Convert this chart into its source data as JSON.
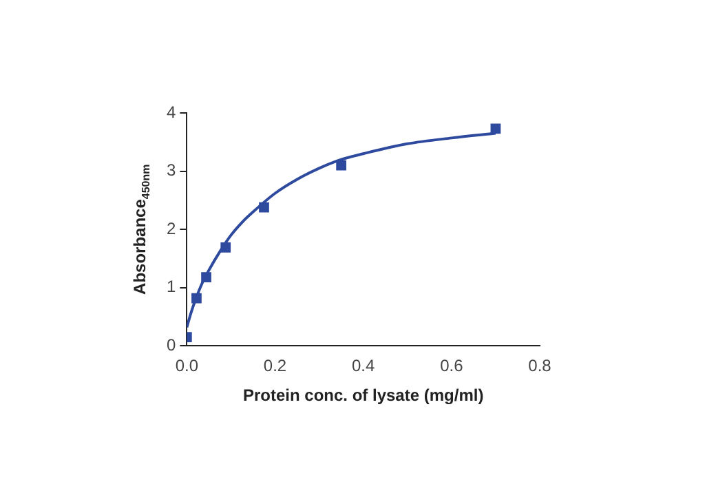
{
  "chart_data": {
    "type": "scatter",
    "xlabel": "Protein conc. of lysate (mg/ml)",
    "ylabel": "Absorbance$_{450nm}$",
    "xlim": [
      0,
      0.8
    ],
    "xticks": [
      {
        "value": 0,
        "label": "0.0"
      },
      0.2,
      0.4,
      0.6,
      0.8
    ],
    "ylim": [
      0,
      4
    ],
    "yticks": [
      0,
      1,
      2,
      3,
      4
    ],
    "grid": false,
    "legend": false,
    "marker": "square",
    "series": [
      {
        "color": "#2e4a9e",
        "x": [
          0,
          0.022,
          0.044,
          0.088,
          0.175,
          0.35,
          0.7
        ],
        "values": [
          0.15,
          0.82,
          1.18,
          1.69,
          2.38,
          3.1,
          3.73
        ]
      },
      {
        "type": "line",
        "color": "#2e4a9e",
        "marker": "none",
        "x": [
          0,
          0.01,
          0.02,
          0.035,
          0.05,
          0.075,
          0.1,
          0.125,
          0.15,
          0.2,
          0.25,
          0.3,
          0.35,
          0.4,
          0.5,
          0.6,
          0.7
        ],
        "values": [
          0.32,
          0.58,
          0.8,
          1.08,
          1.3,
          1.62,
          1.9,
          2.12,
          2.3,
          2.62,
          2.86,
          3.05,
          3.2,
          3.3,
          3.47,
          3.57,
          3.65
        ]
      }
    ]
  }
}
